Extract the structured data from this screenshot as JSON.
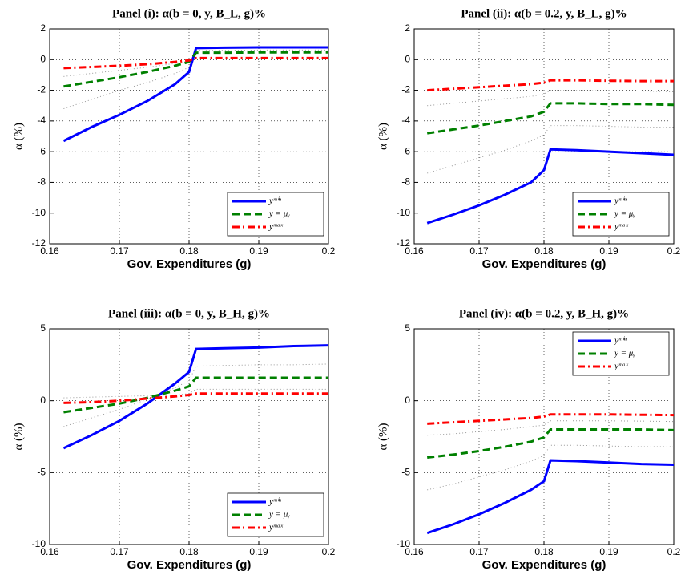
{
  "chart_data": [
    {
      "type": "line",
      "title": "Panel (i): α(b = 0, y, B_L, g)%",
      "xlabel": "Gov. Expenditures (g)",
      "ylabel": "α (%)",
      "x": [
        0.162,
        0.166,
        0.17,
        0.174,
        0.178,
        0.18,
        0.181,
        0.185,
        0.19,
        0.195,
        0.2
      ],
      "xlim": [
        0.16,
        0.2
      ],
      "xticks": [
        0.16,
        0.17,
        0.18,
        0.19,
        0.2
      ],
      "ylim": [
        -12,
        2
      ],
      "yticks": [
        -12,
        -10,
        -8,
        -6,
        -4,
        -2,
        0,
        2
      ],
      "grid": true,
      "legend": "lower right",
      "series": [
        {
          "name": "yᵐⁱⁿ",
          "color": "#0000ff",
          "style": "solid",
          "values": [
            -5.3,
            -4.4,
            -3.6,
            -2.7,
            -1.6,
            -0.8,
            0.75,
            0.78,
            0.8,
            0.8,
            0.8
          ]
        },
        {
          "name": "y = μᵧ",
          "color": "#008000",
          "style": "dashed",
          "values": [
            -1.75,
            -1.45,
            -1.15,
            -0.8,
            -0.4,
            -0.15,
            0.45,
            0.45,
            0.47,
            0.47,
            0.47
          ]
        },
        {
          "name": "yᵐᵃˣ",
          "color": "#ff0000",
          "style": "dashdot",
          "values": [
            -0.55,
            -0.48,
            -0.4,
            -0.3,
            -0.15,
            -0.05,
            0.1,
            0.1,
            0.1,
            0.1,
            0.1
          ]
        }
      ],
      "bands": [
        {
          "color": "#999999",
          "values": [
            -3.2,
            -2.6,
            -2.0,
            -1.5,
            -0.9,
            -0.5,
            0.6,
            0.6,
            0.62,
            0.62,
            0.62
          ]
        },
        {
          "color": "#999999",
          "values": [
            -1.1,
            -0.9,
            -0.7,
            -0.5,
            -0.25,
            -0.1,
            0.3,
            0.3,
            0.3,
            0.3,
            0.3
          ]
        }
      ]
    },
    {
      "type": "line",
      "title": "Panel (ii): α(b = 0.2, y, B_L, g)%",
      "xlabel": "Gov. Expenditures (g)",
      "ylabel": "α (%)",
      "x": [
        0.162,
        0.166,
        0.17,
        0.174,
        0.178,
        0.18,
        0.181,
        0.185,
        0.19,
        0.195,
        0.2
      ],
      "xlim": [
        0.16,
        0.2
      ],
      "xticks": [
        0.16,
        0.17,
        0.18,
        0.19,
        0.2
      ],
      "ylim": [
        -12,
        2
      ],
      "yticks": [
        -12,
        -10,
        -8,
        -6,
        -4,
        -2,
        0,
        2
      ],
      "grid": true,
      "legend": "lower right",
      "series": [
        {
          "name": "yᵐⁱⁿ",
          "color": "#0000ff",
          "style": "solid",
          "values": [
            -10.65,
            -10.1,
            -9.5,
            -8.8,
            -8.0,
            -7.2,
            -5.85,
            -5.9,
            -6.0,
            -6.1,
            -6.2
          ]
        },
        {
          "name": "y = μᵧ",
          "color": "#008000",
          "style": "dashed",
          "values": [
            -4.8,
            -4.55,
            -4.3,
            -4.0,
            -3.7,
            -3.4,
            -2.85,
            -2.85,
            -2.9,
            -2.9,
            -2.95
          ]
        },
        {
          "name": "yᵐᵃˣ",
          "color": "#ff0000",
          "style": "dashdot",
          "values": [
            -2.0,
            -1.9,
            -1.8,
            -1.7,
            -1.6,
            -1.5,
            -1.35,
            -1.35,
            -1.38,
            -1.4,
            -1.4
          ]
        }
      ],
      "bands": [
        {
          "color": "#999999",
          "values": [
            -7.4,
            -6.9,
            -6.4,
            -5.9,
            -5.3,
            -4.9,
            -4.3,
            -4.3,
            -4.35,
            -4.4,
            -4.4
          ]
        },
        {
          "color": "#999999",
          "values": [
            -3.0,
            -2.85,
            -2.7,
            -2.55,
            -2.4,
            -2.25,
            -2.0,
            -2.0,
            -2.05,
            -2.05,
            -2.1
          ]
        }
      ]
    },
    {
      "type": "line",
      "title": "Panel (iii): α(b = 0, y, B_H, g)%",
      "xlabel": "Gov. Expenditures (g)",
      "ylabel": "α (%)",
      "x": [
        0.162,
        0.166,
        0.17,
        0.174,
        0.178,
        0.18,
        0.181,
        0.185,
        0.19,
        0.195,
        0.2
      ],
      "xlim": [
        0.16,
        0.2
      ],
      "xticks": [
        0.16,
        0.17,
        0.18,
        0.19,
        0.2
      ],
      "ylim": [
        -10,
        5
      ],
      "yticks": [
        -10,
        -5,
        0,
        5
      ],
      "grid": true,
      "legend": "lower right",
      "series": [
        {
          "name": "yᵐⁱⁿ",
          "color": "#0000ff",
          "style": "solid",
          "values": [
            -3.3,
            -2.4,
            -1.4,
            -0.2,
            1.2,
            2.0,
            3.6,
            3.65,
            3.7,
            3.8,
            3.85
          ]
        },
        {
          "name": "y = μᵧ",
          "color": "#008000",
          "style": "dashed",
          "values": [
            -0.8,
            -0.5,
            -0.2,
            0.2,
            0.7,
            1.0,
            1.6,
            1.6,
            1.6,
            1.6,
            1.6
          ]
        },
        {
          "name": "yᵐᵃˣ",
          "color": "#ff0000",
          "style": "dashdot",
          "values": [
            -0.15,
            -0.1,
            0,
            0.15,
            0.3,
            0.4,
            0.5,
            0.5,
            0.5,
            0.5,
            0.5
          ]
        }
      ],
      "bands": [
        {
          "color": "#999999",
          "values": [
            -1.8,
            -1.2,
            -0.6,
            0.1,
            0.9,
            1.4,
            2.4,
            2.45,
            2.5,
            2.5,
            2.55
          ]
        },
        {
          "color": "#999999",
          "values": [
            0.2,
            0.25,
            0.3,
            0.35,
            0.4,
            0.5,
            0.8,
            0.8,
            0.8,
            0.8,
            0.8
          ]
        }
      ]
    },
    {
      "type": "line",
      "title": "Panel (iv): α(b = 0.2, y, B_H, g)%",
      "xlabel": "Gov. Expenditures (g)",
      "ylabel": "α (%)",
      "x": [
        0.162,
        0.166,
        0.17,
        0.174,
        0.178,
        0.18,
        0.181,
        0.185,
        0.19,
        0.195,
        0.2
      ],
      "xlim": [
        0.16,
        0.2
      ],
      "xticks": [
        0.16,
        0.17,
        0.18,
        0.19,
        0.2
      ],
      "ylim": [
        -10,
        5
      ],
      "yticks": [
        -10,
        -5,
        0,
        5
      ],
      "grid": true,
      "legend": "upper right",
      "series": [
        {
          "name": "yᵐⁱⁿ",
          "color": "#0000ff",
          "style": "solid",
          "values": [
            -9.2,
            -8.6,
            -7.9,
            -7.1,
            -6.2,
            -5.6,
            -4.15,
            -4.2,
            -4.3,
            -4.4,
            -4.45
          ]
        },
        {
          "name": "y = μᵧ",
          "color": "#008000",
          "style": "dashed",
          "values": [
            -3.95,
            -3.75,
            -3.5,
            -3.2,
            -2.85,
            -2.55,
            -2.0,
            -2.0,
            -2.0,
            -2.0,
            -2.05
          ]
        },
        {
          "name": "yᵐᵃˣ",
          "color": "#ff0000",
          "style": "dashdot",
          "values": [
            -1.6,
            -1.5,
            -1.4,
            -1.3,
            -1.2,
            -1.1,
            -0.95,
            -0.95,
            -0.95,
            -0.98,
            -1.0
          ]
        }
      ],
      "bands": [
        {
          "color": "#999999",
          "values": [
            -6.2,
            -5.8,
            -5.3,
            -4.8,
            -4.2,
            -3.8,
            -3.1,
            -3.1,
            -3.15,
            -3.2,
            -3.2
          ]
        },
        {
          "color": "#999999",
          "values": [
            -2.4,
            -2.3,
            -2.15,
            -2.0,
            -1.8,
            -1.7,
            -1.4,
            -1.4,
            -1.4,
            -1.42,
            -1.45
          ]
        }
      ]
    }
  ]
}
